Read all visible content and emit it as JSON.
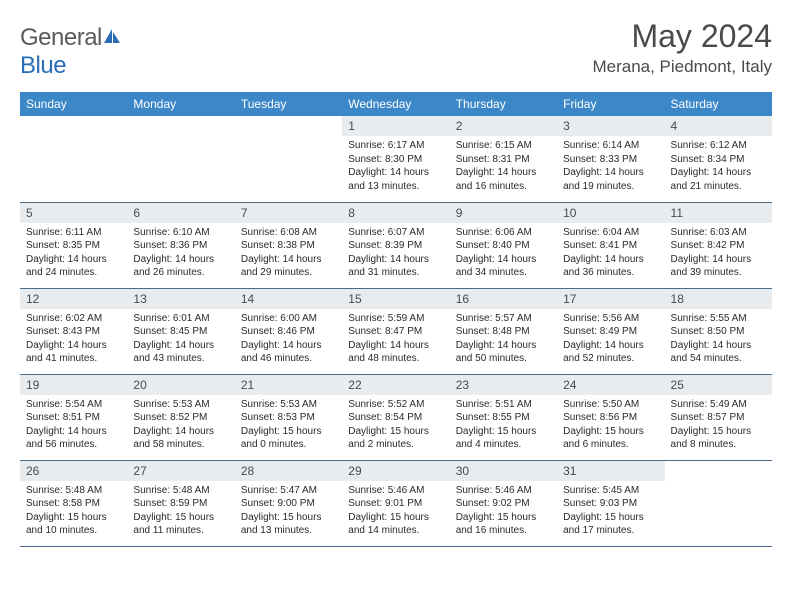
{
  "logo": {
    "general": "General",
    "blue": "Blue"
  },
  "header": {
    "title": "May 2024",
    "location": "Merana, Piedmont, Italy"
  },
  "colors": {
    "header_bg": "#3c87c7",
    "header_text": "#ffffff",
    "daynum_bg": "#e9ecef",
    "row_divider": "#4a6a8a",
    "title_text": "#4a4a4a",
    "logo_blue": "#2a6db5",
    "logo_gray": "#5a5a5a"
  },
  "daynames": [
    "Sunday",
    "Monday",
    "Tuesday",
    "Wednesday",
    "Thursday",
    "Friday",
    "Saturday"
  ],
  "weeks": [
    [
      {
        "n": "",
        "sr": "",
        "ss": "",
        "dl": ""
      },
      {
        "n": "",
        "sr": "",
        "ss": "",
        "dl": ""
      },
      {
        "n": "",
        "sr": "",
        "ss": "",
        "dl": ""
      },
      {
        "n": "1",
        "sr": "Sunrise: 6:17 AM",
        "ss": "Sunset: 8:30 PM",
        "dl": "Daylight: 14 hours and 13 minutes."
      },
      {
        "n": "2",
        "sr": "Sunrise: 6:15 AM",
        "ss": "Sunset: 8:31 PM",
        "dl": "Daylight: 14 hours and 16 minutes."
      },
      {
        "n": "3",
        "sr": "Sunrise: 6:14 AM",
        "ss": "Sunset: 8:33 PM",
        "dl": "Daylight: 14 hours and 19 minutes."
      },
      {
        "n": "4",
        "sr": "Sunrise: 6:12 AM",
        "ss": "Sunset: 8:34 PM",
        "dl": "Daylight: 14 hours and 21 minutes."
      }
    ],
    [
      {
        "n": "5",
        "sr": "Sunrise: 6:11 AM",
        "ss": "Sunset: 8:35 PM",
        "dl": "Daylight: 14 hours and 24 minutes."
      },
      {
        "n": "6",
        "sr": "Sunrise: 6:10 AM",
        "ss": "Sunset: 8:36 PM",
        "dl": "Daylight: 14 hours and 26 minutes."
      },
      {
        "n": "7",
        "sr": "Sunrise: 6:08 AM",
        "ss": "Sunset: 8:38 PM",
        "dl": "Daylight: 14 hours and 29 minutes."
      },
      {
        "n": "8",
        "sr": "Sunrise: 6:07 AM",
        "ss": "Sunset: 8:39 PM",
        "dl": "Daylight: 14 hours and 31 minutes."
      },
      {
        "n": "9",
        "sr": "Sunrise: 6:06 AM",
        "ss": "Sunset: 8:40 PM",
        "dl": "Daylight: 14 hours and 34 minutes."
      },
      {
        "n": "10",
        "sr": "Sunrise: 6:04 AM",
        "ss": "Sunset: 8:41 PM",
        "dl": "Daylight: 14 hours and 36 minutes."
      },
      {
        "n": "11",
        "sr": "Sunrise: 6:03 AM",
        "ss": "Sunset: 8:42 PM",
        "dl": "Daylight: 14 hours and 39 minutes."
      }
    ],
    [
      {
        "n": "12",
        "sr": "Sunrise: 6:02 AM",
        "ss": "Sunset: 8:43 PM",
        "dl": "Daylight: 14 hours and 41 minutes."
      },
      {
        "n": "13",
        "sr": "Sunrise: 6:01 AM",
        "ss": "Sunset: 8:45 PM",
        "dl": "Daylight: 14 hours and 43 minutes."
      },
      {
        "n": "14",
        "sr": "Sunrise: 6:00 AM",
        "ss": "Sunset: 8:46 PM",
        "dl": "Daylight: 14 hours and 46 minutes."
      },
      {
        "n": "15",
        "sr": "Sunrise: 5:59 AM",
        "ss": "Sunset: 8:47 PM",
        "dl": "Daylight: 14 hours and 48 minutes."
      },
      {
        "n": "16",
        "sr": "Sunrise: 5:57 AM",
        "ss": "Sunset: 8:48 PM",
        "dl": "Daylight: 14 hours and 50 minutes."
      },
      {
        "n": "17",
        "sr": "Sunrise: 5:56 AM",
        "ss": "Sunset: 8:49 PM",
        "dl": "Daylight: 14 hours and 52 minutes."
      },
      {
        "n": "18",
        "sr": "Sunrise: 5:55 AM",
        "ss": "Sunset: 8:50 PM",
        "dl": "Daylight: 14 hours and 54 minutes."
      }
    ],
    [
      {
        "n": "19",
        "sr": "Sunrise: 5:54 AM",
        "ss": "Sunset: 8:51 PM",
        "dl": "Daylight: 14 hours and 56 minutes."
      },
      {
        "n": "20",
        "sr": "Sunrise: 5:53 AM",
        "ss": "Sunset: 8:52 PM",
        "dl": "Daylight: 14 hours and 58 minutes."
      },
      {
        "n": "21",
        "sr": "Sunrise: 5:53 AM",
        "ss": "Sunset: 8:53 PM",
        "dl": "Daylight: 15 hours and 0 minutes."
      },
      {
        "n": "22",
        "sr": "Sunrise: 5:52 AM",
        "ss": "Sunset: 8:54 PM",
        "dl": "Daylight: 15 hours and 2 minutes."
      },
      {
        "n": "23",
        "sr": "Sunrise: 5:51 AM",
        "ss": "Sunset: 8:55 PM",
        "dl": "Daylight: 15 hours and 4 minutes."
      },
      {
        "n": "24",
        "sr": "Sunrise: 5:50 AM",
        "ss": "Sunset: 8:56 PM",
        "dl": "Daylight: 15 hours and 6 minutes."
      },
      {
        "n": "25",
        "sr": "Sunrise: 5:49 AM",
        "ss": "Sunset: 8:57 PM",
        "dl": "Daylight: 15 hours and 8 minutes."
      }
    ],
    [
      {
        "n": "26",
        "sr": "Sunrise: 5:48 AM",
        "ss": "Sunset: 8:58 PM",
        "dl": "Daylight: 15 hours and 10 minutes."
      },
      {
        "n": "27",
        "sr": "Sunrise: 5:48 AM",
        "ss": "Sunset: 8:59 PM",
        "dl": "Daylight: 15 hours and 11 minutes."
      },
      {
        "n": "28",
        "sr": "Sunrise: 5:47 AM",
        "ss": "Sunset: 9:00 PM",
        "dl": "Daylight: 15 hours and 13 minutes."
      },
      {
        "n": "29",
        "sr": "Sunrise: 5:46 AM",
        "ss": "Sunset: 9:01 PM",
        "dl": "Daylight: 15 hours and 14 minutes."
      },
      {
        "n": "30",
        "sr": "Sunrise: 5:46 AM",
        "ss": "Sunset: 9:02 PM",
        "dl": "Daylight: 15 hours and 16 minutes."
      },
      {
        "n": "31",
        "sr": "Sunrise: 5:45 AM",
        "ss": "Sunset: 9:03 PM",
        "dl": "Daylight: 15 hours and 17 minutes."
      },
      {
        "n": "",
        "sr": "",
        "ss": "",
        "dl": ""
      }
    ]
  ]
}
